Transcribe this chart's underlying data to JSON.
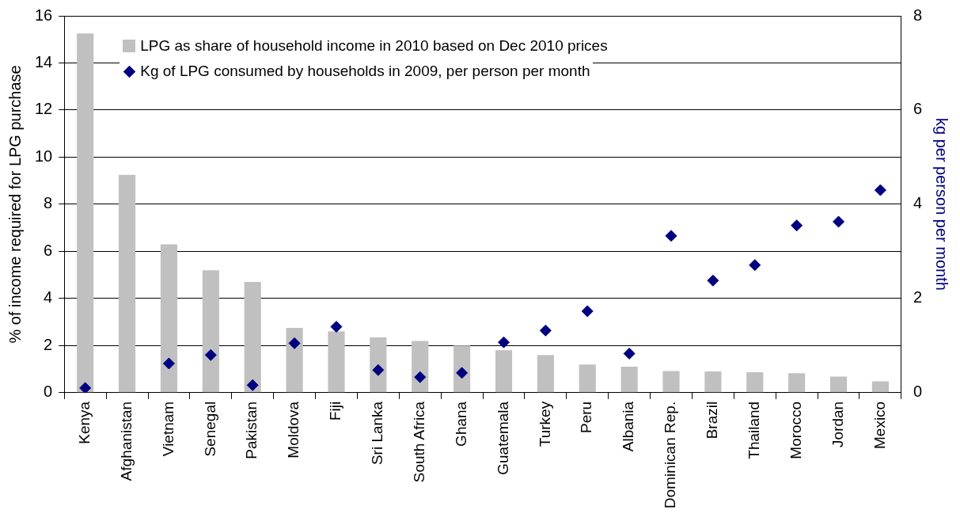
{
  "chart_data": {
    "type": "bar",
    "categories": [
      "Kenya",
      "Afghanistan",
      "Vietnam",
      "Senegal",
      "Pakistan",
      "Moldova",
      "Fiji",
      "Sri Lanka",
      "South Africa",
      "Ghana",
      "Guatemala",
      "Turkey",
      "Peru",
      "Albania",
      "Dominican Rep.",
      "Brazil",
      "Thailand",
      "Morocco",
      "Jordan",
      "Mexico"
    ],
    "series": [
      {
        "name": "LPG as share of household income in 2010 based on Dec 2010 prices",
        "color": "#c0c0c0",
        "values": [
          15.25,
          9.25,
          6.3,
          5.2,
          4.7,
          2.75,
          2.6,
          2.35,
          2.2,
          2.0,
          1.8,
          1.6,
          1.2,
          1.1,
          0.92,
          0.9,
          0.87,
          0.83,
          0.68,
          0.48
        ]
      },
      {
        "name": "Kg of LPG consumed by households in 2009, per person per month",
        "type": "scatter",
        "axis": "y2",
        "color": "#000080",
        "marker": "diamond",
        "x": [
          "Kenya",
          "Afghanistan",
          "Vietnam",
          "Senegal",
          "Pakistan",
          "Moldova",
          "Fiji",
          "Sri Lanka",
          "South Africa",
          "Ghana",
          "Guatemala",
          "Turkey",
          "Peru",
          "Albania",
          "Dominican Rep.",
          "Brazil",
          "Thailand",
          "Morocco",
          "Jordan",
          "Mexico"
        ],
        "values": [
          0.1,
          null,
          0.62,
          0.8,
          0.16,
          1.05,
          1.4,
          0.48,
          0.33,
          0.42,
          1.07,
          1.32,
          1.73,
          0.83,
          3.33,
          2.38,
          2.71,
          3.55,
          3.63,
          4.3
        ]
      }
    ],
    "ylabel": "% of income required for LPG purchase",
    "y2label": "kg per person per month",
    "ylim": [
      0,
      16
    ],
    "yticks": [
      0,
      2,
      4,
      6,
      8,
      10,
      12,
      14,
      16
    ],
    "y2lim": [
      0,
      8
    ],
    "y2ticks": [
      0,
      2,
      4,
      6,
      8
    ],
    "grid": "y",
    "legend": "top left"
  }
}
